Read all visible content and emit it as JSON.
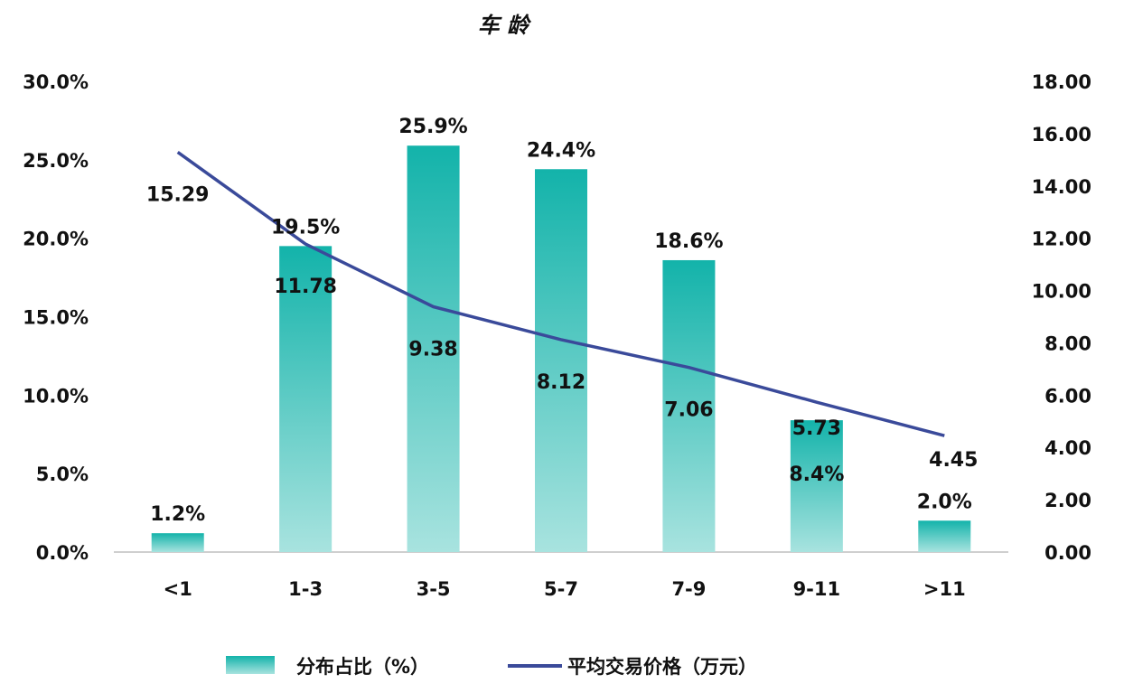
{
  "chart_data": {
    "type": "bar",
    "title": "车 龄",
    "categories": [
      "<1",
      "1-3",
      "3-5",
      "5-7",
      "7-9",
      "9-11",
      ">11"
    ],
    "series": [
      {
        "name": "分布占比（%）",
        "type": "bar",
        "axis": "left",
        "values": [
          1.2,
          19.5,
          25.9,
          24.4,
          18.6,
          8.4,
          2.0
        ],
        "labels": [
          "1.2%",
          "19.5%",
          "25.9%",
          "24.4%",
          "18.6%",
          "8.4%",
          "2.0%"
        ]
      },
      {
        "name": "平均交易价格（万元）",
        "type": "line",
        "axis": "right",
        "values": [
          15.29,
          11.78,
          9.38,
          8.12,
          7.06,
          5.73,
          4.45
        ],
        "labels": [
          "15.29",
          "11.78",
          "9.38",
          "8.12",
          "7.06",
          "5.73",
          "4.45"
        ]
      }
    ],
    "y_left": {
      "ylim": [
        0,
        30
      ],
      "ticks": [
        "0.0%",
        "5.0%",
        "10.0%",
        "15.0%",
        "20.0%",
        "25.0%",
        "30.0%"
      ]
    },
    "y_right": {
      "ylim": [
        0,
        18
      ],
      "ticks": [
        "0.00",
        "2.00",
        "4.00",
        "6.00",
        "8.00",
        "10.00",
        "12.00",
        "14.00",
        "16.00",
        "18.00"
      ]
    },
    "grid": false,
    "legend": "bottom",
    "colors": {
      "bar_top": "#13b3aa",
      "bar_bottom": "#a8e3df",
      "line": "#3a4a9a",
      "axis": "#bfbfbf"
    }
  }
}
